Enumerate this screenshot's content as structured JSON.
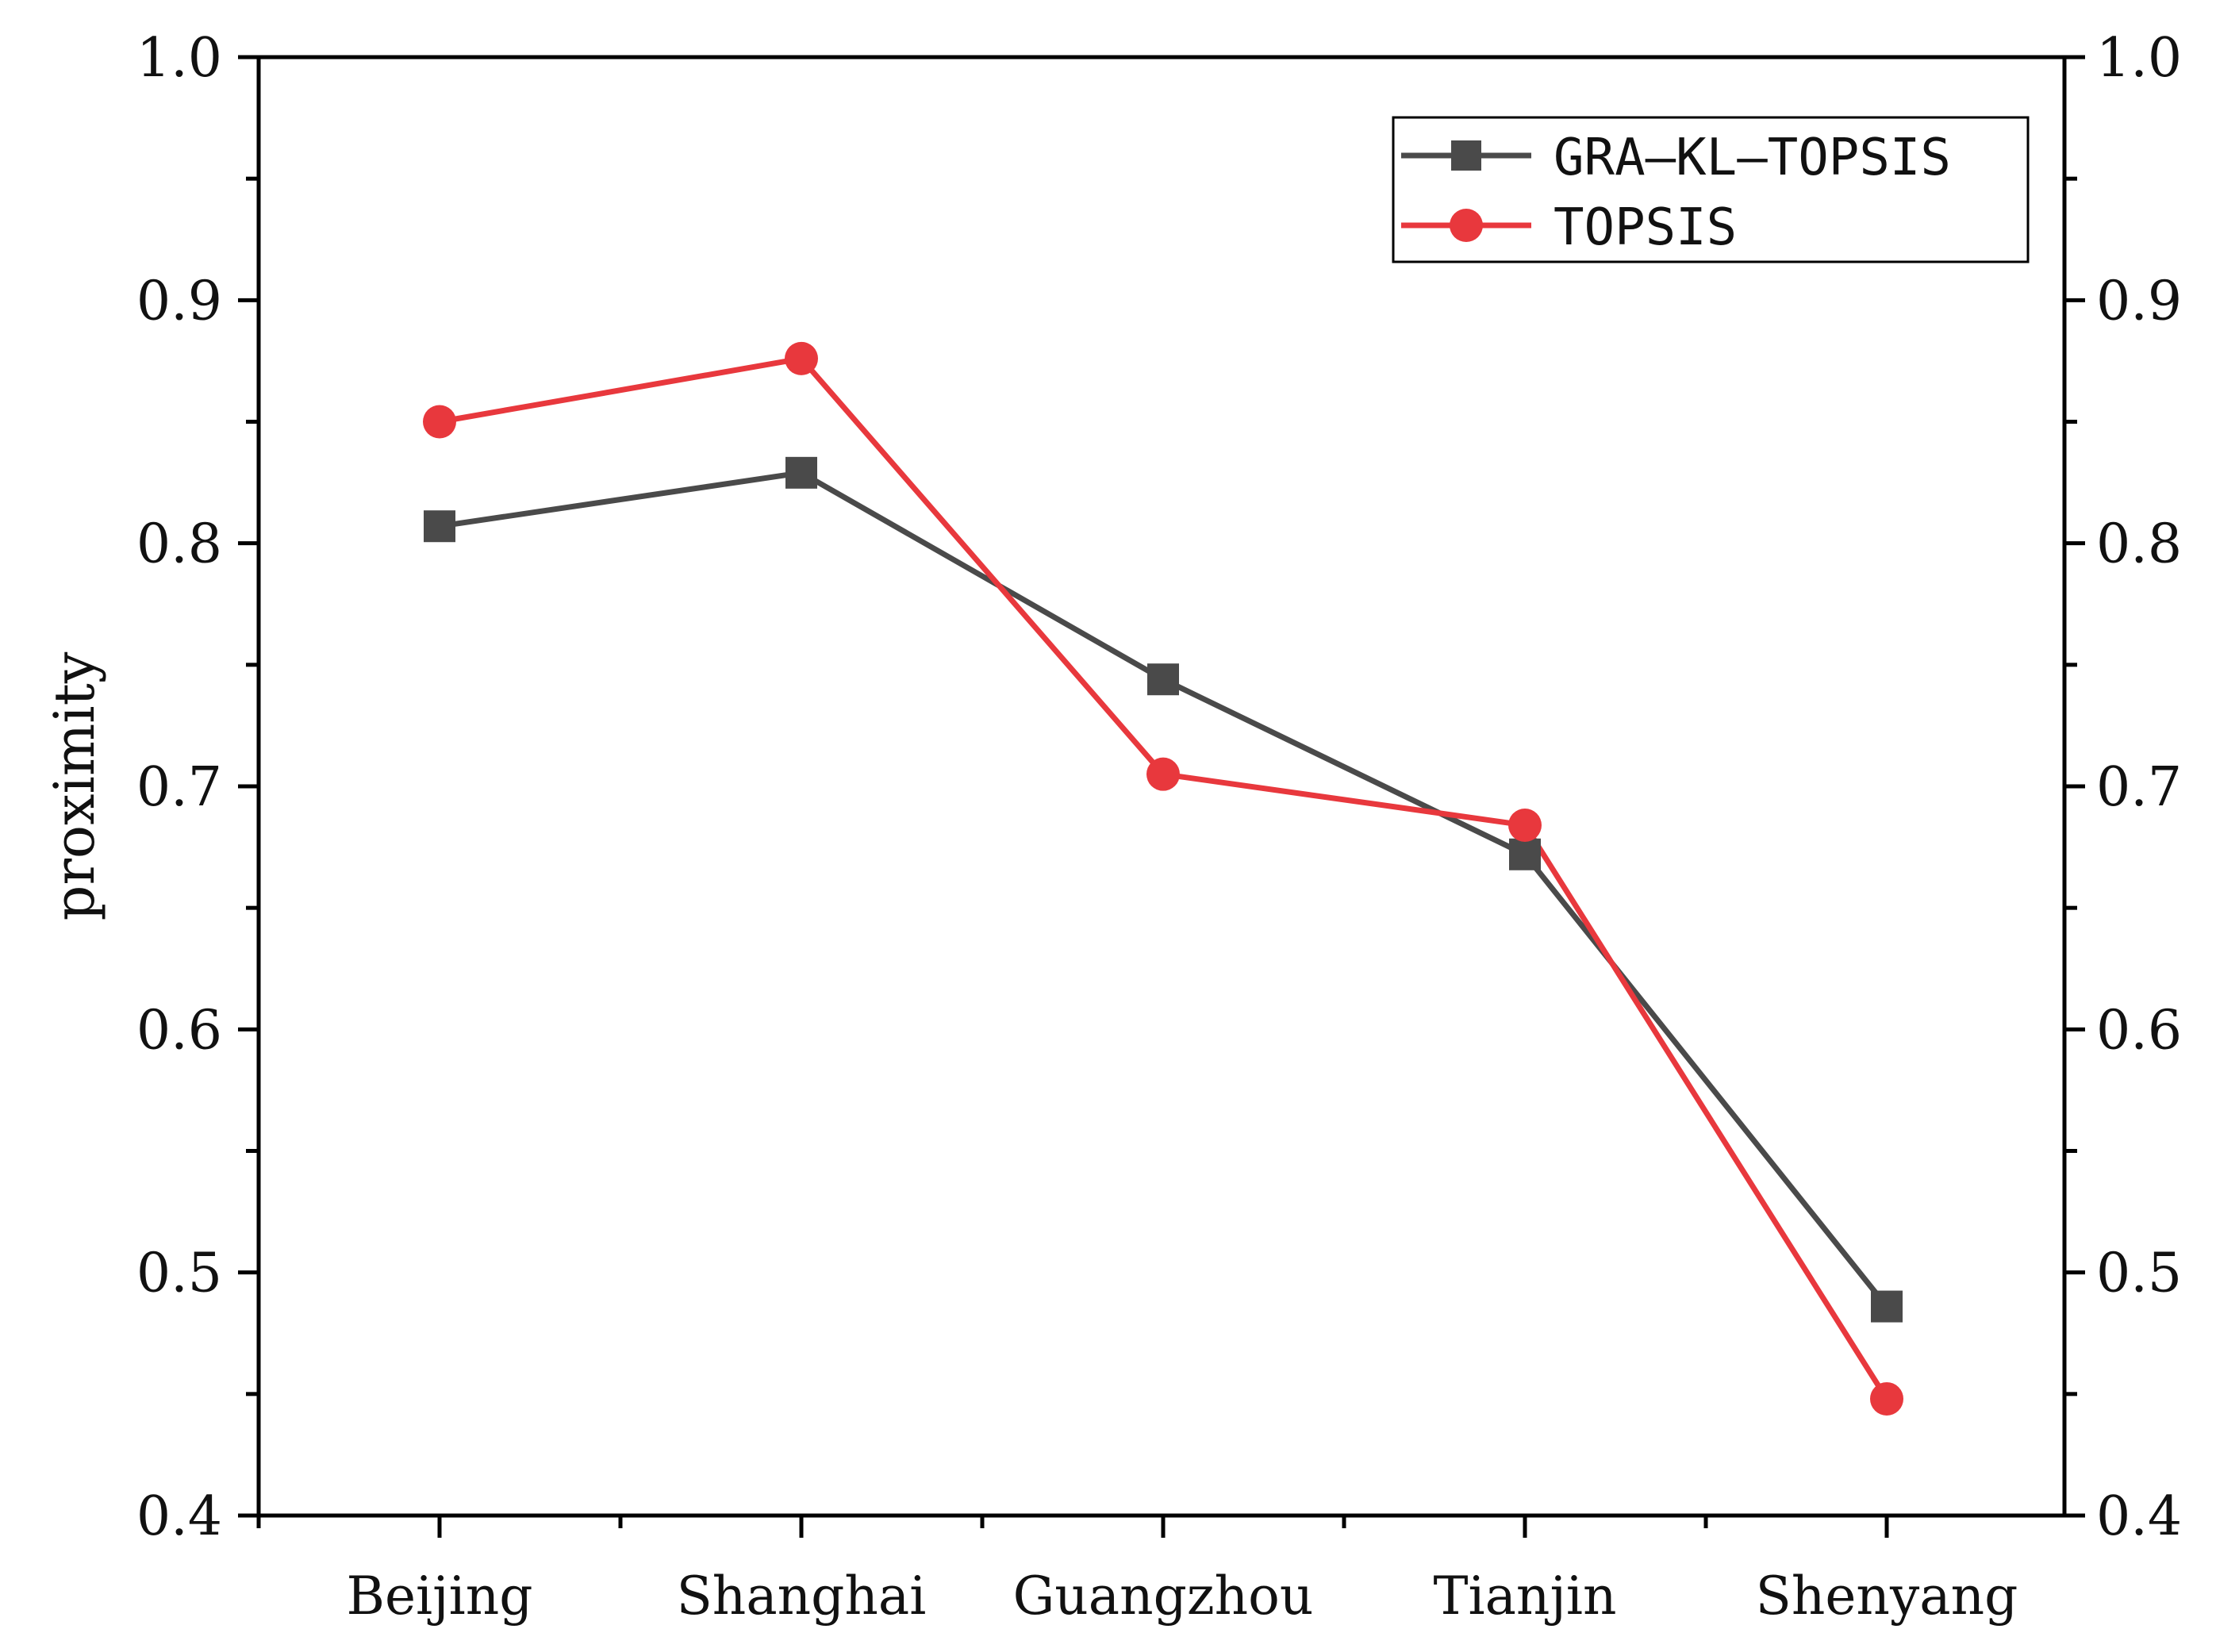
{
  "chart_data": {
    "type": "line",
    "title": "",
    "xlabel": "",
    "ylabel": "proximity",
    "ylim": [
      0.4,
      1.0
    ],
    "y_ticks": [
      "0.4",
      "0.5",
      "0.6",
      "0.7",
      "0.8",
      "0.9",
      "1.0"
    ],
    "right_axis_ticks": [
      "0.4",
      "0.5",
      "0.6",
      "0.7",
      "0.8",
      "0.9",
      "1.0"
    ],
    "categories": [
      "Beijing",
      "Shanghai",
      "Guangzhou",
      "Tianjin",
      "Shenyang"
    ],
    "series": [
      {
        "name": "GRA—KL—TOPSIS",
        "marker": "square",
        "color": "#4a4a4a",
        "values": [
          0.807,
          0.829,
          0.744,
          0.672,
          0.486
        ]
      },
      {
        "name": "TOPSIS",
        "marker": "circle",
        "color": "#e8383d",
        "values": [
          0.85,
          0.876,
          0.705,
          0.684,
          0.448
        ]
      }
    ],
    "legend_position": "top-right",
    "grid": false
  }
}
